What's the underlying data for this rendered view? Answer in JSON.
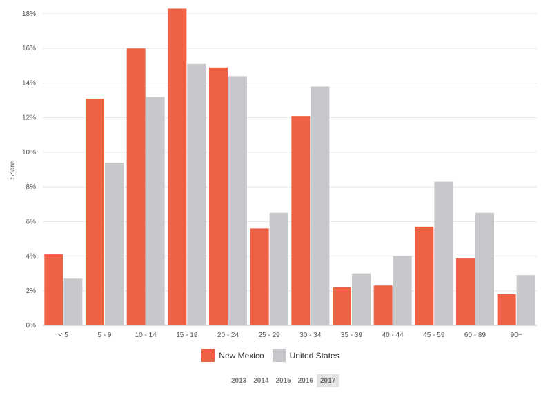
{
  "chart_data": {
    "type": "bar",
    "ylabel": "Share",
    "ylim": [
      0,
      0.18
    ],
    "yticks": [
      "0%",
      "2%",
      "4%",
      "6%",
      "8%",
      "10%",
      "12%",
      "14%",
      "16%",
      "18%"
    ],
    "categories": [
      "< 5",
      "5 - 9",
      "10 - 14",
      "15 - 19",
      "20 - 24",
      "25 - 29",
      "30 - 34",
      "35 - 39",
      "40 - 44",
      "45 - 59",
      "60 - 89",
      "90+"
    ],
    "series": [
      {
        "name": "New Mexico",
        "color": "#ef6145",
        "values": [
          0.041,
          0.131,
          0.16,
          0.183,
          0.149,
          0.056,
          0.121,
          0.022,
          0.023,
          0.057,
          0.039,
          0.018
        ]
      },
      {
        "name": "United States",
        "color": "#c7c8cb",
        "values": [
          0.027,
          0.094,
          0.132,
          0.151,
          0.144,
          0.065,
          0.138,
          0.03,
          0.04,
          0.083,
          0.065,
          0.029
        ]
      }
    ],
    "grid": true,
    "legend_position": "bottom-center"
  },
  "legend": {
    "items": [
      {
        "label": "New Mexico",
        "color": "#ef6145"
      },
      {
        "label": "United States",
        "color": "#c7c8cb"
      }
    ]
  },
  "years": {
    "items": [
      "2013",
      "2014",
      "2015",
      "2016",
      "2017"
    ],
    "active": "2017"
  }
}
